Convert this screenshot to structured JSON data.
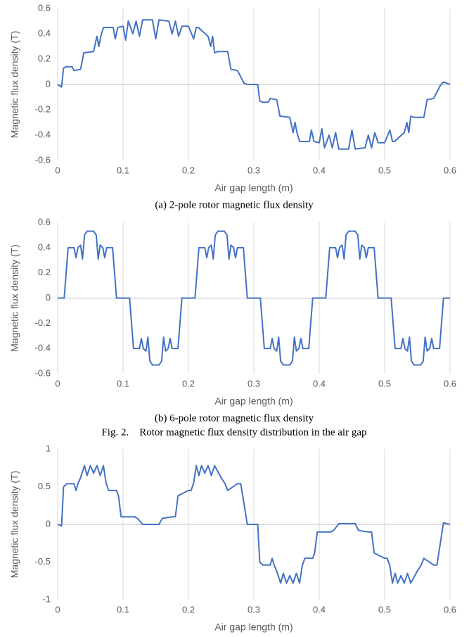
{
  "chart_data": [
    {
      "type": "line",
      "color": "#4472c4",
      "grid": "x",
      "xlabel": "Air gap length (m)",
      "ylabel": "Magnetic flux density (T)",
      "caption": "(a) 2-pole rotor magnetic flux density",
      "xlim": [
        0,
        0.6
      ],
      "xticks": [
        0,
        0.1,
        0.2,
        0.3,
        0.4,
        0.5,
        0.6
      ],
      "ylim": [
        -0.6,
        0.6
      ],
      "yticks": [
        -0.6,
        -0.4,
        -0.2,
        0,
        0.2,
        0.4,
        0.6
      ],
      "x": [
        0,
        0.006,
        0.009,
        0.013,
        0.022,
        0.025,
        0.035,
        0.04,
        0.055,
        0.06,
        0.063,
        0.066,
        0.07,
        0.085,
        0.088,
        0.092,
        0.1,
        0.104,
        0.108,
        0.115,
        0.12,
        0.125,
        0.13,
        0.145,
        0.15,
        0.155,
        0.17,
        0.175,
        0.18,
        0.185,
        0.19,
        0.2,
        0.208,
        0.212,
        0.215,
        0.23,
        0.234,
        0.237,
        0.24,
        0.245,
        0.26,
        0.265,
        0.275,
        0.285,
        0.29,
        0.3,
        0.306,
        0.309,
        0.313,
        0.322,
        0.325,
        0.335,
        0.34,
        0.355,
        0.36,
        0.363,
        0.366,
        0.37,
        0.385,
        0.388,
        0.392,
        0.4,
        0.404,
        0.408,
        0.415,
        0.42,
        0.425,
        0.43,
        0.445,
        0.45,
        0.455,
        0.47,
        0.475,
        0.48,
        0.485,
        0.49,
        0.5,
        0.508,
        0.512,
        0.515,
        0.53,
        0.534,
        0.537,
        0.54,
        0.545,
        0.56,
        0.565,
        0.575,
        0.585,
        0.59,
        0.6
      ],
      "values": [
        0,
        -0.02,
        0.13,
        0.14,
        0.14,
        0.11,
        0.12,
        0.25,
        0.26,
        0.38,
        0.3,
        0.38,
        0.45,
        0.45,
        0.36,
        0.45,
        0.46,
        0.35,
        0.5,
        0.4,
        0.5,
        0.38,
        0.51,
        0.51,
        0.36,
        0.51,
        0.5,
        0.4,
        0.5,
        0.38,
        0.46,
        0.46,
        0.36,
        0.45,
        0.45,
        0.38,
        0.3,
        0.38,
        0.25,
        0.26,
        0.26,
        0.12,
        0.11,
        0.01,
        0,
        0,
        0,
        -0.13,
        -0.14,
        -0.14,
        -0.11,
        -0.12,
        -0.25,
        -0.26,
        -0.38,
        -0.3,
        -0.38,
        -0.45,
        -0.45,
        -0.36,
        -0.45,
        -0.46,
        -0.35,
        -0.5,
        -0.4,
        -0.5,
        -0.38,
        -0.51,
        -0.51,
        -0.36,
        -0.51,
        -0.5,
        -0.4,
        -0.5,
        -0.38,
        -0.46,
        -0.46,
        -0.36,
        -0.45,
        -0.45,
        -0.38,
        -0.3,
        -0.38,
        -0.25,
        -0.26,
        -0.26,
        -0.12,
        -0.11,
        -0.01,
        0.02,
        0
      ]
    },
    {
      "type": "line",
      "color": "#4472c4",
      "grid": "x",
      "xlabel": "Air gap length (m)",
      "ylabel": "Magnetic flux density (T)",
      "caption": "(b) 6-pole rotor magnetic flux density",
      "xlim": [
        0,
        0.6
      ],
      "xticks": [
        0,
        0.1,
        0.2,
        0.3,
        0.4,
        0.5,
        0.6
      ],
      "ylim": [
        -0.6,
        0.6
      ],
      "yticks": [
        -0.6,
        -0.4,
        -0.2,
        0,
        0.2,
        0.4,
        0.6
      ],
      "x": [
        0,
        0.01,
        0.016,
        0.025,
        0.028,
        0.031,
        0.035,
        0.038,
        0.041,
        0.045,
        0.055,
        0.059,
        0.062,
        0.065,
        0.069,
        0.072,
        0.075,
        0.084,
        0.09,
        0.1,
        0.11,
        0.116,
        0.125,
        0.128,
        0.131,
        0.135,
        0.138,
        0.141,
        0.145,
        0.155,
        0.159,
        0.162,
        0.165,
        0.169,
        0.172,
        0.175,
        0.184,
        0.19,
        0.2,
        0.21,
        0.216,
        0.225,
        0.228,
        0.231,
        0.235,
        0.238,
        0.241,
        0.245,
        0.255,
        0.259,
        0.262,
        0.265,
        0.269,
        0.272,
        0.275,
        0.284,
        0.29,
        0.3,
        0.31,
        0.316,
        0.325,
        0.328,
        0.331,
        0.335,
        0.338,
        0.341,
        0.345,
        0.355,
        0.359,
        0.362,
        0.365,
        0.369,
        0.372,
        0.375,
        0.384,
        0.39,
        0.4,
        0.41,
        0.416,
        0.425,
        0.428,
        0.431,
        0.435,
        0.438,
        0.441,
        0.445,
        0.455,
        0.459,
        0.462,
        0.465,
        0.469,
        0.472,
        0.475,
        0.484,
        0.49,
        0.5,
        0.51,
        0.516,
        0.525,
        0.528,
        0.531,
        0.535,
        0.538,
        0.541,
        0.545,
        0.555,
        0.559,
        0.562,
        0.565,
        0.569,
        0.572,
        0.575,
        0.584,
        0.59,
        0.6
      ],
      "values": [
        0,
        0,
        0.4,
        0.4,
        0.32,
        0.4,
        0.42,
        0.31,
        0.5,
        0.53,
        0.53,
        0.5,
        0.31,
        0.42,
        0.4,
        0.32,
        0.4,
        0.4,
        0,
        0,
        0,
        -0.4,
        -0.4,
        -0.32,
        -0.4,
        -0.42,
        -0.31,
        -0.5,
        -0.53,
        -0.53,
        -0.5,
        -0.31,
        -0.42,
        -0.4,
        -0.32,
        -0.4,
        -0.4,
        0,
        0,
        0,
        0.4,
        0.4,
        0.32,
        0.4,
        0.42,
        0.31,
        0.5,
        0.53,
        0.53,
        0.5,
        0.31,
        0.42,
        0.4,
        0.32,
        0.4,
        0.4,
        0,
        0,
        0,
        -0.4,
        -0.4,
        -0.32,
        -0.4,
        -0.42,
        -0.31,
        -0.5,
        -0.53,
        -0.53,
        -0.5,
        -0.31,
        -0.42,
        -0.4,
        -0.32,
        -0.4,
        -0.4,
        0,
        0,
        0,
        0.4,
        0.4,
        0.32,
        0.4,
        0.42,
        0.31,
        0.5,
        0.53,
        0.53,
        0.5,
        0.31,
        0.42,
        0.4,
        0.32,
        0.4,
        0.4,
        0,
        0,
        0,
        -0.4,
        -0.4,
        -0.32,
        -0.4,
        -0.42,
        -0.31,
        -0.5,
        -0.53,
        -0.53,
        -0.5,
        -0.31,
        -0.42,
        -0.4,
        -0.32,
        -0.4,
        -0.4,
        0,
        0
      ]
    },
    {
      "type": "line",
      "color": "#4472c4",
      "grid": "x",
      "xlabel": "Air gap length (m)",
      "ylabel": "Magnetic flux density (T)",
      "xlim": [
        0,
        0.6
      ],
      "xticks": [
        0,
        0.1,
        0.2,
        0.3,
        0.4,
        0.5,
        0.6
      ],
      "ylim": [
        -1,
        1
      ],
      "yticks": [
        -1,
        -0.5,
        0,
        0.5,
        1
      ],
      "x": [
        0,
        0.006,
        0.009,
        0.014,
        0.025,
        0.028,
        0.031,
        0.035,
        0.038,
        0.041,
        0.045,
        0.05,
        0.055,
        0.06,
        0.065,
        0.07,
        0.074,
        0.078,
        0.09,
        0.093,
        0.097,
        0.118,
        0.122,
        0.13,
        0.155,
        0.16,
        0.175,
        0.18,
        0.184,
        0.2,
        0.204,
        0.208,
        0.212,
        0.216,
        0.22,
        0.225,
        0.23,
        0.235,
        0.24,
        0.245,
        0.25,
        0.256,
        0.26,
        0.275,
        0.28,
        0.29,
        0.3,
        0.306,
        0.309,
        0.314,
        0.325,
        0.328,
        0.331,
        0.335,
        0.338,
        0.341,
        0.345,
        0.35,
        0.355,
        0.36,
        0.365,
        0.37,
        0.374,
        0.378,
        0.39,
        0.393,
        0.397,
        0.418,
        0.422,
        0.43,
        0.455,
        0.46,
        0.475,
        0.48,
        0.484,
        0.5,
        0.504,
        0.508,
        0.512,
        0.516,
        0.52,
        0.525,
        0.53,
        0.535,
        0.54,
        0.545,
        0.55,
        0.556,
        0.56,
        0.575,
        0.58,
        0.59,
        0.6
      ],
      "values": [
        0,
        -0.02,
        0.5,
        0.54,
        0.54,
        0.45,
        0.54,
        0.62,
        0.7,
        0.78,
        0.65,
        0.78,
        0.68,
        0.78,
        0.65,
        0.78,
        0.55,
        0.45,
        0.45,
        0.38,
        0.1,
        0.1,
        0.08,
        0,
        0,
        0.08,
        0.1,
        0.1,
        0.38,
        0.45,
        0.45,
        0.55,
        0.78,
        0.65,
        0.78,
        0.68,
        0.78,
        0.65,
        0.78,
        0.7,
        0.62,
        0.54,
        0.45,
        0.54,
        0.54,
        0,
        0,
        0,
        -0.5,
        -0.54,
        -0.54,
        -0.45,
        -0.54,
        -0.62,
        -0.7,
        -0.78,
        -0.65,
        -0.78,
        -0.68,
        -0.78,
        -0.65,
        -0.78,
        -0.55,
        -0.45,
        -0.45,
        -0.38,
        -0.1,
        -0.1,
        -0.08,
        0.01,
        0.01,
        -0.08,
        -0.1,
        -0.1,
        -0.38,
        -0.45,
        -0.45,
        -0.55,
        -0.78,
        -0.65,
        -0.78,
        -0.68,
        -0.78,
        -0.65,
        -0.78,
        -0.7,
        -0.62,
        -0.54,
        -0.45,
        -0.54,
        -0.54,
        0.02,
        0
      ]
    }
  ],
  "figure_caption": "Fig. 2.    Rotor magnetic flux density distribution in the air gap"
}
